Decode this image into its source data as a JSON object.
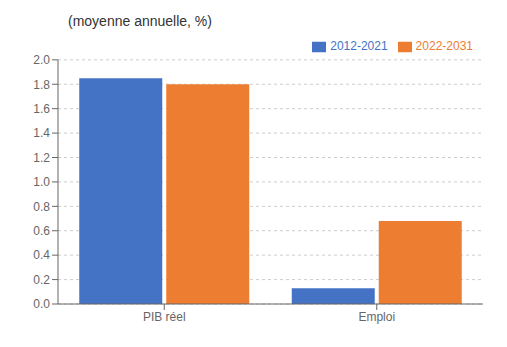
{
  "chart_data": {
    "type": "bar",
    "title": "(moyenne annuelle, %)",
    "categories": [
      "PIB réel",
      "Emploi"
    ],
    "series": [
      {
        "name": "2012-2021",
        "color": "#4472C4",
        "values": [
          1.85,
          0.13
        ]
      },
      {
        "name": "2022-2031",
        "color": "#ED7D31",
        "values": [
          1.8,
          0.68
        ]
      }
    ],
    "ylim": [
      0.0,
      2.0
    ],
    "yticks": [
      {
        "value": 0.0,
        "label": "0.0"
      },
      0.2,
      0.4,
      0.6,
      0.8,
      {
        "value": 1.0,
        "label": "1.0"
      },
      1.2,
      1.4,
      1.6,
      1.8,
      {
        "value": 2.0,
        "label": "2.0"
      }
    ],
    "grid": true,
    "legend": "top"
  }
}
